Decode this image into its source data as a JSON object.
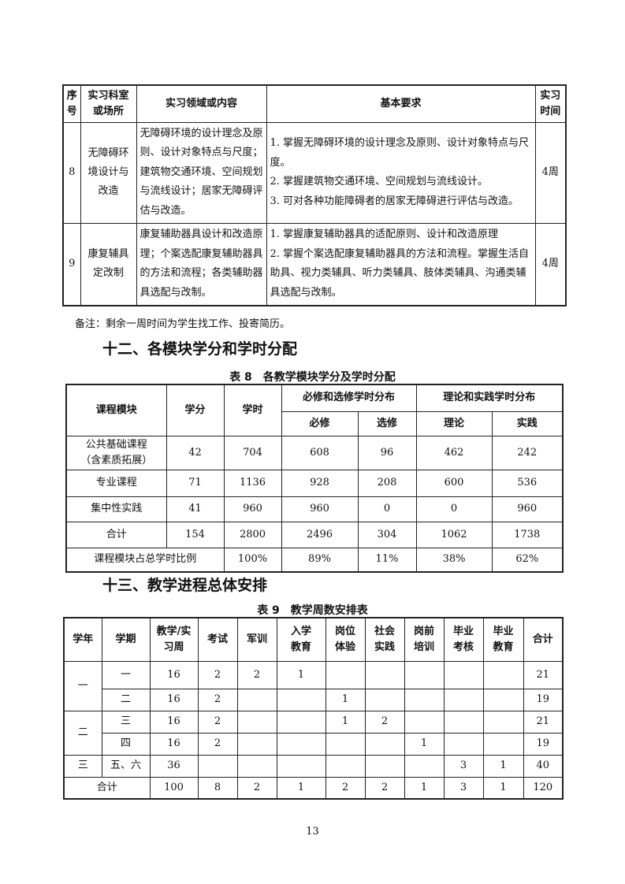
{
  "practice_table": {
    "headers": [
      "序号",
      "实习科室或场所",
      "实习领域或内容",
      "基本要求",
      "实习时间"
    ],
    "rows": [
      {
        "no": "8",
        "place": "无障碍环境设计与改造",
        "content": "无障碍环境的设计理念及原则、设计对象特点与尺度；建筑物交通环境、空间规划与流线设计；居家无障碍评估与改造。",
        "requirements": [
          "1. 掌握无障碍环境的设计理念及原则、设计对象特点与尺度。",
          "2. 掌握建筑物交通环境、空间规划与流线设计。",
          "3. 可对各种功能障碍者的居家无障碍进行评估与改造。"
        ],
        "time": "4周"
      },
      {
        "no": "9",
        "place": "康复辅具定改制",
        "content": "康复辅助器具设计和改造原理；个案选配康复辅助器具的方法和流程；各类辅助器具选配与改制。",
        "requirements": [
          "1. 掌握康复辅助器具的适配原则、设计和改造原理",
          "2. 掌握个案选配康复辅助器具的方法和流程。掌握生活自助具、视力类辅具、听力类辅具、肢体类辅具、沟通类辅具选配与改制。"
        ],
        "time": "4周"
      }
    ]
  },
  "note": "备注：剩余一周时间为学生找工作、投寄简历。",
  "section12": {
    "title": "十二、各模块学分和学时分配"
  },
  "table8": {
    "caption": "表 8　各教学模块学分及学时分配",
    "headers": {
      "module": "课程模块",
      "credits": "学分",
      "hours": "学时",
      "group1": "必修和选修学时分布",
      "required": "必修",
      "elective": "选修",
      "group2": "理论和实践学时分布",
      "theory": "理论",
      "practice": "实践"
    },
    "rows": [
      [
        "公共基础课程（含素质拓展）",
        "42",
        "704",
        "608",
        "96",
        "462",
        "242"
      ],
      [
        "专业课程",
        "71",
        "1136",
        "928",
        "208",
        "600",
        "536"
      ],
      [
        "集中性实践",
        "41",
        "960",
        "960",
        "0",
        "0",
        "960"
      ],
      [
        "合计",
        "154",
        "2800",
        "2496",
        "304",
        "1062",
        "1738"
      ],
      [
        "课程模块占总学时比例",
        "",
        "100%",
        "89%",
        "11%",
        "38%",
        "62%"
      ]
    ]
  },
  "section13": {
    "title": "十三、教学进程总体安排"
  },
  "table9": {
    "caption": "表 9　教学周数安排表",
    "headers": [
      "学年",
      "学期",
      "教学/实习周",
      "考试",
      "军训",
      "入学教育",
      "岗位体验",
      "社会实践",
      "岗前培训",
      "毕业考核",
      "毕业教育",
      "合计"
    ],
    "years": [
      "一",
      "二",
      "三"
    ],
    "rows": [
      [
        "一",
        "16",
        "2",
        "2",
        "1",
        "",
        "",
        "",
        "",
        "",
        "21"
      ],
      [
        "二",
        "16",
        "2",
        "",
        "",
        "1",
        "",
        "",
        "",
        "",
        "19"
      ],
      [
        "三",
        "16",
        "2",
        "",
        "",
        "1",
        "2",
        "",
        "",
        "",
        "21"
      ],
      [
        "四",
        "16",
        "2",
        "",
        "",
        "",
        "",
        "1",
        "",
        "",
        "19"
      ],
      [
        "五、六",
        "36",
        "",
        "",
        "",
        "",
        "",
        "",
        "3",
        "1",
        "40"
      ]
    ],
    "total": [
      "合计",
      "100",
      "8",
      "2",
      "1",
      "2",
      "2",
      "1",
      "3",
      "1",
      "120"
    ]
  },
  "page_number": "13"
}
